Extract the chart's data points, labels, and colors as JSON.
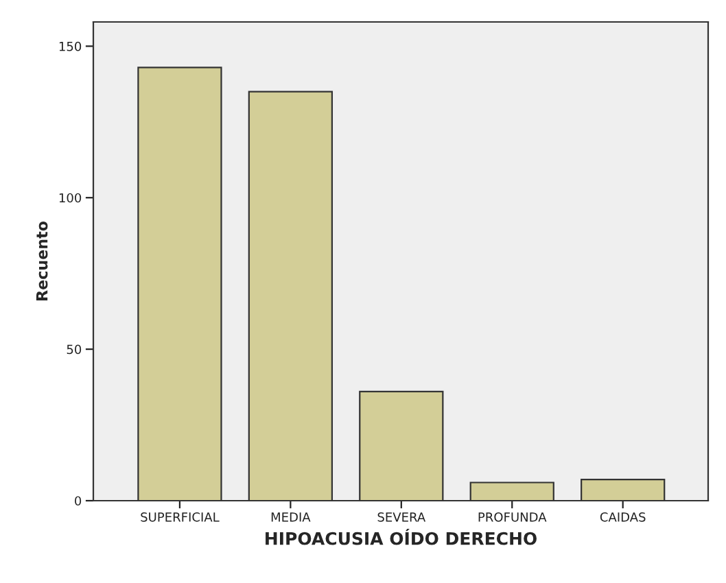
{
  "chart_data": {
    "type": "bar",
    "xlabel": "HIPOACUSIA OÍDO DERECHO",
    "ylabel": "Recuento",
    "categories": [
      "SUPERFICIAL",
      "MEDIA",
      "SEVERA",
      "PROFUNDA",
      "CAIDAS"
    ],
    "values": [
      143,
      135,
      36,
      6,
      7
    ],
    "color": "#d3ce97",
    "ylim": [
      0,
      158
    ],
    "yticks": [
      0,
      50,
      100,
      150
    ],
    "grid": false,
    "legend": false
  }
}
